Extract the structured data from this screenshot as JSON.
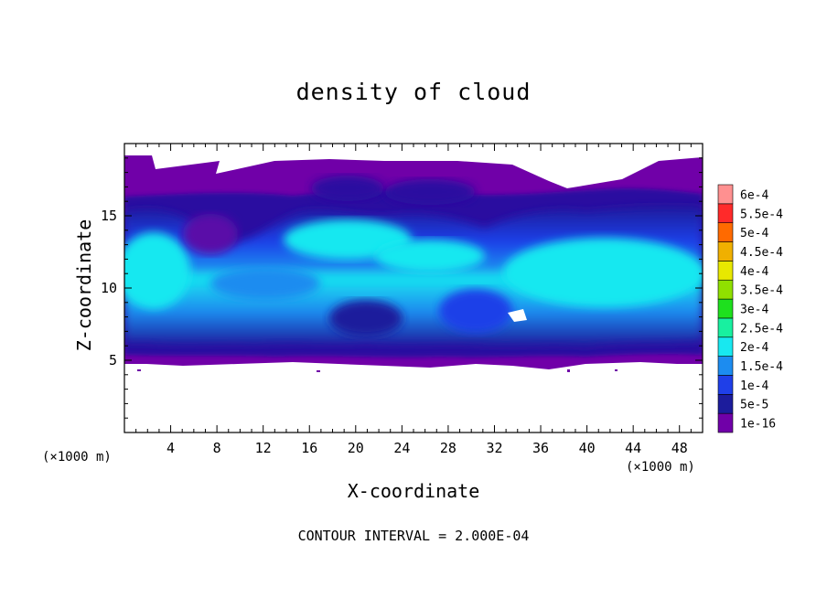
{
  "chart_data": {
    "type": "heatmap",
    "title": "density of cloud",
    "xlabel": "X-coordinate",
    "ylabel": "Z-coordinate",
    "x_unit": "(×1000 m)",
    "xlim": [
      0,
      50
    ],
    "ylim": [
      0,
      20
    ],
    "x_ticks": [
      "4",
      "8",
      "12",
      "16",
      "20",
      "24",
      "28",
      "32",
      "36",
      "40",
      "44",
      "48"
    ],
    "y_ticks": [
      "5",
      "10",
      "15"
    ],
    "colorbar": {
      "labels": [
        "1e-16",
        "5e-5",
        "1e-4",
        "1.5e-4",
        "2e-4",
        "2.5e-4",
        "3e-4",
        "3.5e-4",
        "4e-4",
        "4.5e-4",
        "5e-4",
        "5.5e-4",
        "6e-4"
      ],
      "colors": [
        "#7000a8",
        "#1c1c9c",
        "#1f3fe8",
        "#1c8cf0",
        "#18e8f0",
        "#18f0a0",
        "#1ee01e",
        "#90e000",
        "#e8e800",
        "#f0b000",
        "#ff6a00",
        "#ff2a2a",
        "#ff9090"
      ]
    },
    "cloud_layer_z": [
      4.5,
      19
    ],
    "peak_density_z": [
      10,
      14
    ],
    "footer": "CONTOUR INTERVAL = 2.000E-04"
  }
}
